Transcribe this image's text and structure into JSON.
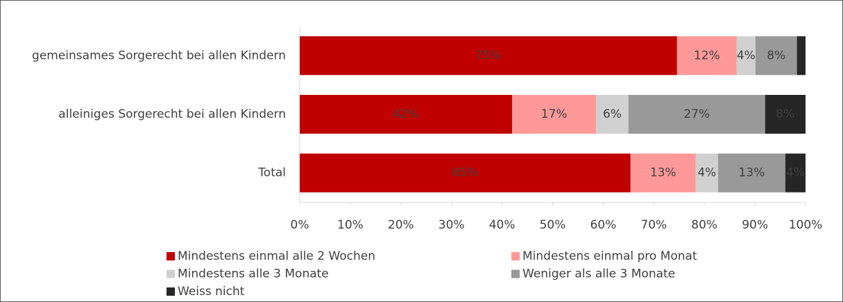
{
  "chart_data": {
    "type": "stacked-bar-horizontal",
    "categories": [
      "gemeinsames Sorgerecht bei allen Kindern",
      "alleiniges Sorgerecht bei allen Kindern",
      "Total"
    ],
    "series": [
      {
        "name": "Mindestens einmal alle 2 Wochen",
        "color": "#c00000",
        "label_color": "#ffffff",
        "values": [
          74.6,
          42,
          65.4
        ],
        "value_labels": [
          "75%",
          "42%",
          "65%"
        ]
      },
      {
        "name": "Mindestens einmal pro Monat",
        "color": "#ff9999",
        "label_color": "#595959",
        "values": [
          11.8,
          16.6,
          12.9
        ],
        "value_labels": [
          "12%",
          "17%",
          "13%"
        ]
      },
      {
        "name": "Mindestens alle 3 Monate",
        "color": "#d0d0d0",
        "label_color": "#595959",
        "values": [
          3.7,
          6.4,
          4.4
        ],
        "value_labels": [
          "4%",
          "6%",
          "4%"
        ]
      },
      {
        "name": "Weniger als alle 3 Monate",
        "color": "#999999",
        "label_color": "#595959",
        "values": [
          8.2,
          27,
          13.3
        ],
        "value_labels": [
          "8%",
          "27%",
          "13%"
        ]
      },
      {
        "name": "Weiss nicht",
        "color": "#262626",
        "label_color": "#ffffff",
        "values": [
          1.7,
          8,
          4
        ],
        "value_labels": [
          null,
          "8%",
          "4%"
        ]
      }
    ],
    "xlim": [
      0,
      100
    ],
    "xticks": [
      {
        "value": 0,
        "label": "0%"
      },
      {
        "value": 10,
        "label": "10%"
      },
      {
        "value": 20,
        "label": "20%"
      },
      {
        "value": 30,
        "label": "30%"
      },
      {
        "value": 40,
        "label": "40%"
      },
      {
        "value": 50,
        "label": "50%"
      },
      {
        "value": 60,
        "label": "60%"
      },
      {
        "value": 70,
        "label": "70%"
      },
      {
        "value": 80,
        "label": "80%"
      },
      {
        "value": 90,
        "label": "90%"
      },
      {
        "value": 100,
        "label": "100%"
      }
    ],
    "legend": "bottom"
  }
}
